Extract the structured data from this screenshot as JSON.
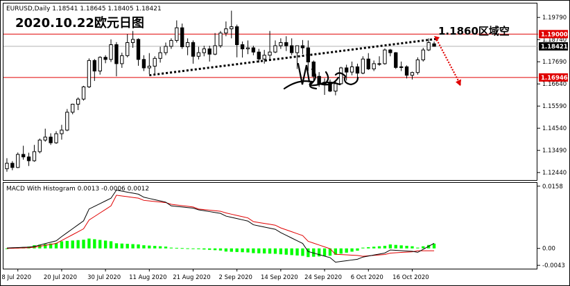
{
  "window": {
    "symbol_line": "EURUSD,Daily  1.18541 1.18645 1.18405 1.18421"
  },
  "annotations": {
    "title": "2020.10.22欧元日图",
    "level_note": "1.1860区域空"
  },
  "price_axis": {
    "ticks": [
      "1.19790",
      "1.18740",
      "1.17690",
      "1.16640",
      "1.15590",
      "1.14540",
      "1.13490",
      "1.12440"
    ],
    "boxes": [
      {
        "label": "1.19000",
        "color": "#e00000"
      },
      {
        "label": "1.18421",
        "color": "#000000"
      },
      {
        "label": "1.16946",
        "color": "#e00000"
      }
    ]
  },
  "macd_axis": {
    "label": "MACD With Histogram 0.0013 -0.0006 0.0012",
    "ticks": [
      "0.0158",
      "0.00",
      "-0.0043"
    ]
  },
  "date_axis": [
    "8 Jul 2020",
    "20 Jul 2020",
    "30 Jul 2020",
    "11 Aug 2020",
    "21 Aug 2020",
    "2 Sep 2020",
    "14 Sep 2020",
    "24 Sep 2020",
    "6 Oct 2020",
    "16 Oct 2020"
  ],
  "colors": {
    "up_candle": "#ffffff",
    "down_candle": "#000000",
    "resistance": "#e00000",
    "histogram": "#00ff00",
    "macd_line": "#000000",
    "signal_line": "#e00000",
    "arrow": "#e00000"
  },
  "chart_data": [
    {
      "type": "candlestick",
      "title": "",
      "xlabel": "",
      "ylabel": "",
      "ylim": [
        1.1215,
        1.2042
      ],
      "horizontal_lines": [
        1.19,
        1.16946
      ],
      "current_price": 1.18421,
      "trendline": {
        "from": {
          "date": "2020-08-11",
          "price": 1.1705
        },
        "to": {
          "date": "2020-10-21",
          "price": 1.1872
        }
      },
      "projection_arrow": {
        "from": 1.1885,
        "to": 1.166
      },
      "candles": [
        {
          "date": "2020-07-06",
          "o": 1.1262,
          "h": 1.1312,
          "l": 1.1248,
          "c": 1.1288
        },
        {
          "date": "2020-07-07",
          "o": 1.1288,
          "h": 1.1298,
          "l": 1.1255,
          "c": 1.1268
        },
        {
          "date": "2020-07-08",
          "o": 1.1268,
          "h": 1.1339,
          "l": 1.1265,
          "c": 1.133
        },
        {
          "date": "2020-07-09",
          "o": 1.133,
          "h": 1.1371,
          "l": 1.1305,
          "c": 1.1318
        },
        {
          "date": "2020-07-10",
          "o": 1.1318,
          "h": 1.1338,
          "l": 1.1275,
          "c": 1.13
        },
        {
          "date": "2020-07-13",
          "o": 1.13,
          "h": 1.1375,
          "l": 1.1295,
          "c": 1.1343
        },
        {
          "date": "2020-07-14",
          "o": 1.1343,
          "h": 1.1405,
          "l": 1.1335,
          "c": 1.1398
        },
        {
          "date": "2020-07-15",
          "o": 1.1398,
          "h": 1.1452,
          "l": 1.139,
          "c": 1.1412
        },
        {
          "date": "2020-07-16",
          "o": 1.1412,
          "h": 1.143,
          "l": 1.1375,
          "c": 1.1385
        },
        {
          "date": "2020-07-17",
          "o": 1.1385,
          "h": 1.144,
          "l": 1.138,
          "c": 1.1428
        },
        {
          "date": "2020-07-20",
          "o": 1.1428,
          "h": 1.147,
          "l": 1.14,
          "c": 1.1445
        },
        {
          "date": "2020-07-21",
          "o": 1.1445,
          "h": 1.1545,
          "l": 1.144,
          "c": 1.153
        },
        {
          "date": "2020-07-22",
          "o": 1.153,
          "h": 1.157,
          "l": 1.152,
          "c": 1.1568
        },
        {
          "date": "2020-07-23",
          "o": 1.1568,
          "h": 1.16,
          "l": 1.154,
          "c": 1.1592
        },
        {
          "date": "2020-07-24",
          "o": 1.1592,
          "h": 1.1655,
          "l": 1.1585,
          "c": 1.165
        },
        {
          "date": "2020-07-27",
          "o": 1.165,
          "h": 1.1785,
          "l": 1.1645,
          "c": 1.1775
        },
        {
          "date": "2020-07-28",
          "o": 1.1775,
          "h": 1.1782,
          "l": 1.1678,
          "c": 1.1725
        },
        {
          "date": "2020-07-29",
          "o": 1.1725,
          "h": 1.1795,
          "l": 1.1708,
          "c": 1.179
        },
        {
          "date": "2020-07-30",
          "o": 1.179,
          "h": 1.18,
          "l": 1.1762,
          "c": 1.178
        },
        {
          "date": "2020-07-31",
          "o": 1.178,
          "h": 1.1875,
          "l": 1.1768,
          "c": 1.185
        },
        {
          "date": "2020-08-03",
          "o": 1.185,
          "h": 1.1862,
          "l": 1.17,
          "c": 1.176
        },
        {
          "date": "2020-08-04",
          "o": 1.176,
          "h": 1.1812,
          "l": 1.174,
          "c": 1.1798
        },
        {
          "date": "2020-08-05",
          "o": 1.1798,
          "h": 1.19,
          "l": 1.179,
          "c": 1.186
        },
        {
          "date": "2020-08-06",
          "o": 1.186,
          "h": 1.1915,
          "l": 1.1835,
          "c": 1.1875
        },
        {
          "date": "2020-08-07",
          "o": 1.1875,
          "h": 1.188,
          "l": 1.175,
          "c": 1.178
        },
        {
          "date": "2020-08-10",
          "o": 1.178,
          "h": 1.18,
          "l": 1.1725,
          "c": 1.174
        },
        {
          "date": "2020-08-11",
          "o": 1.174,
          "h": 1.181,
          "l": 1.171,
          "c": 1.1748
        },
        {
          "date": "2020-08-12",
          "o": 1.1748,
          "h": 1.1795,
          "l": 1.171,
          "c": 1.1785
        },
        {
          "date": "2020-08-13",
          "o": 1.1785,
          "h": 1.184,
          "l": 1.1765,
          "c": 1.1812
        },
        {
          "date": "2020-08-14",
          "o": 1.1812,
          "h": 1.186,
          "l": 1.18,
          "c": 1.1842
        },
        {
          "date": "2020-08-17",
          "o": 1.1842,
          "h": 1.188,
          "l": 1.183,
          "c": 1.187
        },
        {
          "date": "2020-08-18",
          "o": 1.187,
          "h": 1.1965,
          "l": 1.186,
          "c": 1.193
        },
        {
          "date": "2020-08-19",
          "o": 1.193,
          "h": 1.195,
          "l": 1.183,
          "c": 1.184
        },
        {
          "date": "2020-08-20",
          "o": 1.184,
          "h": 1.188,
          "l": 1.18,
          "c": 1.186
        },
        {
          "date": "2020-08-21",
          "o": 1.186,
          "h": 1.187,
          "l": 1.176,
          "c": 1.1795
        },
        {
          "date": "2020-08-24",
          "o": 1.1795,
          "h": 1.184,
          "l": 1.178,
          "c": 1.1812
        },
        {
          "date": "2020-08-25",
          "o": 1.1812,
          "h": 1.1845,
          "l": 1.1795,
          "c": 1.183
        },
        {
          "date": "2020-08-26",
          "o": 1.183,
          "h": 1.1845,
          "l": 1.177,
          "c": 1.1805
        },
        {
          "date": "2020-08-27",
          "o": 1.1805,
          "h": 1.1905,
          "l": 1.18,
          "c": 1.1845
        },
        {
          "date": "2020-08-28",
          "o": 1.1845,
          "h": 1.1915,
          "l": 1.1835,
          "c": 1.1905
        },
        {
          "date": "2020-08-31",
          "o": 1.1905,
          "h": 1.196,
          "l": 1.189,
          "c": 1.1925
        },
        {
          "date": "2020-09-01",
          "o": 1.1925,
          "h": 1.2011,
          "l": 1.188,
          "c": 1.1935
        },
        {
          "date": "2020-09-02",
          "o": 1.1935,
          "h": 1.1945,
          "l": 1.179,
          "c": 1.185
        },
        {
          "date": "2020-09-03",
          "o": 1.185,
          "h": 1.1865,
          "l": 1.1789,
          "c": 1.183
        },
        {
          "date": "2020-09-04",
          "o": 1.183,
          "h": 1.187,
          "l": 1.1805,
          "c": 1.1835
        },
        {
          "date": "2020-09-07",
          "o": 1.1835,
          "h": 1.1845,
          "l": 1.18,
          "c": 1.1815
        },
        {
          "date": "2020-09-08",
          "o": 1.1815,
          "h": 1.183,
          "l": 1.1765,
          "c": 1.1782
        },
        {
          "date": "2020-09-09",
          "o": 1.1782,
          "h": 1.1825,
          "l": 1.176,
          "c": 1.18
        },
        {
          "date": "2020-09-10",
          "o": 1.18,
          "h": 1.1915,
          "l": 1.178,
          "c": 1.1815
        },
        {
          "date": "2020-09-11",
          "o": 1.1815,
          "h": 1.187,
          "l": 1.181,
          "c": 1.1845
        },
        {
          "date": "2020-09-14",
          "o": 1.1845,
          "h": 1.188,
          "l": 1.183,
          "c": 1.186
        },
        {
          "date": "2020-09-15",
          "o": 1.186,
          "h": 1.189,
          "l": 1.182,
          "c": 1.1845
        },
        {
          "date": "2020-09-16",
          "o": 1.1845,
          "h": 1.188,
          "l": 1.18,
          "c": 1.1812
        },
        {
          "date": "2020-09-17",
          "o": 1.1812,
          "h": 1.184,
          "l": 1.1735,
          "c": 1.1845
        },
        {
          "date": "2020-09-18",
          "o": 1.1845,
          "h": 1.1872,
          "l": 1.1805,
          "c": 1.1835
        },
        {
          "date": "2020-09-21",
          "o": 1.1835,
          "h": 1.187,
          "l": 1.1725,
          "c": 1.1768
        },
        {
          "date": "2020-09-22",
          "o": 1.1768,
          "h": 1.1775,
          "l": 1.168,
          "c": 1.17
        },
        {
          "date": "2020-09-23",
          "o": 1.17,
          "h": 1.172,
          "l": 1.165,
          "c": 1.1662
        },
        {
          "date": "2020-09-24",
          "o": 1.1662,
          "h": 1.169,
          "l": 1.1612,
          "c": 1.1672
        },
        {
          "date": "2020-09-25",
          "o": 1.1672,
          "h": 1.1685,
          "l": 1.1625,
          "c": 1.163
        },
        {
          "date": "2020-09-28",
          "o": 1.163,
          "h": 1.168,
          "l": 1.161,
          "c": 1.1665
        },
        {
          "date": "2020-09-29",
          "o": 1.1665,
          "h": 1.1745,
          "l": 1.166,
          "c": 1.174
        },
        {
          "date": "2020-09-30",
          "o": 1.174,
          "h": 1.1755,
          "l": 1.168,
          "c": 1.172
        },
        {
          "date": "2020-10-01",
          "o": 1.172,
          "h": 1.177,
          "l": 1.1705,
          "c": 1.1745
        },
        {
          "date": "2020-10-02",
          "o": 1.1745,
          "h": 1.176,
          "l": 1.169,
          "c": 1.1715
        },
        {
          "date": "2020-10-05",
          "o": 1.1715,
          "h": 1.1795,
          "l": 1.171,
          "c": 1.1782
        },
        {
          "date": "2020-10-06",
          "o": 1.1782,
          "h": 1.181,
          "l": 1.173,
          "c": 1.1735
        },
        {
          "date": "2020-10-07",
          "o": 1.1735,
          "h": 1.1775,
          "l": 1.1725,
          "c": 1.176
        },
        {
          "date": "2020-10-08",
          "o": 1.176,
          "h": 1.1795,
          "l": 1.175,
          "c": 1.176
        },
        {
          "date": "2020-10-09",
          "o": 1.176,
          "h": 1.1832,
          "l": 1.1755,
          "c": 1.1825
        },
        {
          "date": "2020-10-12",
          "o": 1.1825,
          "h": 1.183,
          "l": 1.1795,
          "c": 1.1812
        },
        {
          "date": "2020-10-13",
          "o": 1.1812,
          "h": 1.1815,
          "l": 1.1735,
          "c": 1.1742
        },
        {
          "date": "2020-10-14",
          "o": 1.1742,
          "h": 1.177,
          "l": 1.1725,
          "c": 1.1745
        },
        {
          "date": "2020-10-15",
          "o": 1.1745,
          "h": 1.1752,
          "l": 1.169,
          "c": 1.1705
        },
        {
          "date": "2020-10-16",
          "o": 1.1705,
          "h": 1.1722,
          "l": 1.1685,
          "c": 1.1718
        },
        {
          "date": "2020-10-19",
          "o": 1.1718,
          "h": 1.179,
          "l": 1.1708,
          "c": 1.1778
        },
        {
          "date": "2020-10-20",
          "o": 1.1778,
          "h": 1.1835,
          "l": 1.177,
          "c": 1.1825
        },
        {
          "date": "2020-10-21",
          "o": 1.1825,
          "h": 1.188,
          "l": 1.182,
          "c": 1.186
        },
        {
          "date": "2020-10-22",
          "o": 1.18541,
          "h": 1.18645,
          "l": 1.18405,
          "c": 1.18421
        }
      ]
    },
    {
      "type": "macd",
      "title": "MACD With Histogram 0.0013 -0.0006 0.0012",
      "ylim": [
        -0.0048,
        0.0163
      ],
      "zero": 0.0,
      "x_dates": [
        "2020-07-06",
        "2020-07-13",
        "2020-07-20",
        "2020-07-27",
        "2020-08-03",
        "2020-08-10",
        "2020-08-17",
        "2020-08-24",
        "2020-08-31",
        "2020-09-07",
        "2020-09-14",
        "2020-09-21",
        "2020-09-28",
        "2020-10-05",
        "2020-10-12",
        "2020-10-19",
        "2020-10-22"
      ],
      "macd": [
        0.0001,
        0.0005,
        0.003,
        0.01,
        0.0148,
        0.013,
        0.0108,
        0.0098,
        0.0082,
        0.006,
        0.004,
        -0.0008,
        -0.0035,
        -0.0022,
        -0.0004,
        -0.001,
        0.0013
      ],
      "signal": [
        0.0,
        0.0003,
        0.002,
        0.0072,
        0.0135,
        0.0122,
        0.0112,
        0.01,
        0.009,
        0.0068,
        0.0052,
        0.0018,
        -0.0015,
        -0.002,
        -0.0012,
        -0.0006,
        -0.0006
      ],
      "histogram": [
        0.0,
        0.0008,
        0.0018,
        0.0025,
        0.0013,
        0.0008,
        0.0002,
        -0.0002,
        -0.0008,
        -0.0012,
        -0.0015,
        -0.0022,
        -0.0016,
        0.0002,
        0.001,
        0.0002,
        0.0012
      ]
    }
  ]
}
